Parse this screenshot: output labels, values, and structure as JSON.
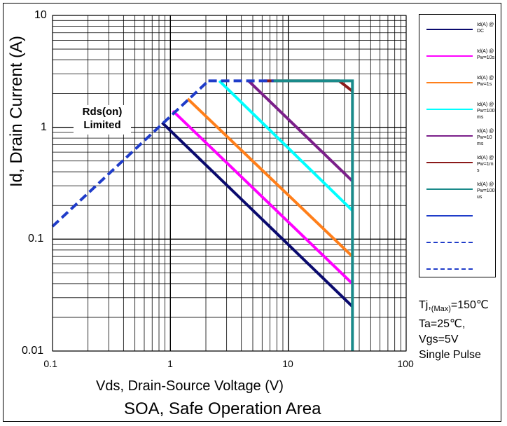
{
  "chart_data": {
    "type": "line",
    "xscale": "log",
    "yscale": "log",
    "xlim": [
      0.1,
      100
    ],
    "ylim": [
      0.01,
      10
    ],
    "x_ticks": [
      "0.1",
      "1",
      "10",
      "100"
    ],
    "y_ticks": [
      "0.01",
      "0.1",
      "1",
      "10"
    ],
    "xlabel": "Vds, Drain-Source Voltage (V)",
    "ylabel": "Id, Drain Current (A)",
    "title": "SOA, Safe Operation Area",
    "grid": true,
    "legend": "right",
    "annotation_rds": [
      "Rds(on)",
      "Limited"
    ],
    "conditions": {
      "line1_main": "Tj,",
      "line1_sub": "(Max)",
      "line1_tail": "=150℃",
      "line2": "Ta=25℃,",
      "line3": "Vgs=5V",
      "line4": "Single Pulse"
    },
    "series": [
      {
        "name": "Id(A) @ DC",
        "color": "#0a0a6e",
        "dashed": false,
        "points": [
          [
            0.85,
            1.1
          ],
          [
            35,
            0.025
          ]
        ]
      },
      {
        "name": "Id(A) @Pw=10s",
        "color": "#ff00ff",
        "dashed": false,
        "points": [
          [
            1.05,
            1.4
          ],
          [
            35,
            0.04
          ]
        ]
      },
      {
        "name": "Id(A) @Pw=1s",
        "color": "#ff7f1a",
        "dashed": false,
        "points": [
          [
            1.4,
            1.8
          ],
          [
            35,
            0.07
          ]
        ]
      },
      {
        "name": "Id(A) @Pw=100 ms",
        "color": "#00ffff",
        "dashed": false,
        "points": [
          [
            2.6,
            2.6
          ],
          [
            35,
            0.18
          ]
        ]
      },
      {
        "name": "Id(A) @Pw=10 ms",
        "color": "#7b1f8a",
        "dashed": false,
        "points": [
          [
            4.6,
            2.6
          ],
          [
            35,
            0.33
          ]
        ]
      },
      {
        "name": "Id(A) @Pw=1ms",
        "color": "#8b1a1a",
        "dashed": false,
        "points": [
          [
            6.2,
            2.6
          ],
          [
            27,
            2.6
          ],
          [
            35,
            2.1
          ]
        ]
      },
      {
        "name": "Id(A) @Pw=100 us",
        "color": "#1a8a8a",
        "dashed": false,
        "points": [
          [
            7.5,
            2.6
          ],
          [
            35,
            2.6
          ],
          [
            35,
            0.01
          ]
        ]
      },
      {
        "name": "",
        "color": "#1f3cc9",
        "dashed": false,
        "points": []
      },
      {
        "name": "",
        "color": "#1f3cc9",
        "dashed": true,
        "points": [
          [
            0.1,
            0.13
          ],
          [
            2.1,
            2.6
          ]
        ]
      },
      {
        "name": "",
        "color": "#1f3cc9",
        "dashed": true,
        "points": [
          [
            2.1,
            2.6
          ],
          [
            7.5,
            2.6
          ]
        ]
      }
    ]
  }
}
